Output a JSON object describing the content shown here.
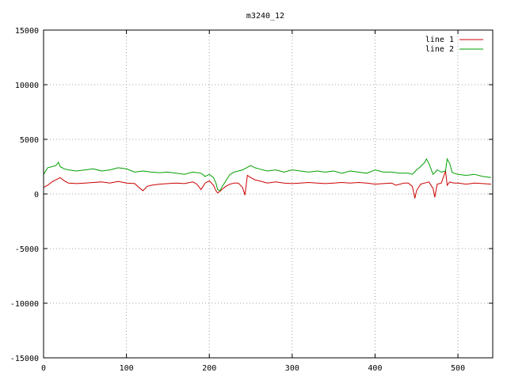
{
  "chart_data": {
    "type": "line",
    "title": "m3240_12",
    "xlim": [
      0,
      542
    ],
    "ylim": [
      -15000,
      15000
    ],
    "xticks": [
      0,
      100,
      200,
      300,
      400,
      500
    ],
    "yticks": [
      -15000,
      -10000,
      -5000,
      0,
      5000,
      10000,
      15000
    ],
    "grid": true,
    "legend_position": "top-right",
    "series": [
      {
        "name": "line 1",
        "color": "#cc0000",
        "x": [
          0,
          5,
          10,
          15,
          20,
          25,
          30,
          40,
          50,
          60,
          70,
          80,
          90,
          100,
          110,
          115,
          120,
          125,
          130,
          140,
          150,
          160,
          170,
          180,
          185,
          190,
          195,
          200,
          205,
          208,
          210,
          213,
          215,
          220,
          225,
          230,
          235,
          240,
          243,
          246,
          250,
          255,
          260,
          270,
          280,
          290,
          300,
          310,
          320,
          330,
          340,
          350,
          360,
          370,
          380,
          390,
          400,
          410,
          420,
          425,
          430,
          435,
          440,
          445,
          448,
          450,
          455,
          460,
          465,
          470,
          472,
          475,
          480,
          485,
          487,
          490,
          495,
          500,
          510,
          520,
          530,
          540
        ],
        "y": [
          600,
          800,
          1100,
          1300,
          1500,
          1200,
          1000,
          950,
          1000,
          1050,
          1100,
          1000,
          1150,
          1000,
          950,
          600,
          300,
          700,
          800,
          900,
          950,
          1000,
          950,
          1100,
          900,
          400,
          1000,
          1200,
          800,
          300,
          100,
          250,
          400,
          700,
          900,
          1000,
          1000,
          600,
          -100,
          1700,
          1500,
          1300,
          1200,
          1000,
          1100,
          1000,
          950,
          1000,
          1050,
          1000,
          950,
          1000,
          1050,
          1000,
          1050,
          1000,
          900,
          950,
          1000,
          800,
          900,
          1000,
          1000,
          700,
          -400,
          300,
          900,
          1000,
          1100,
          500,
          -300,
          900,
          1000,
          2100,
          800,
          1100,
          1000,
          1000,
          900,
          1000,
          950,
          900
        ]
      },
      {
        "name": "line 2",
        "color": "#00a000",
        "x": [
          0,
          5,
          10,
          15,
          18,
          20,
          25,
          30,
          40,
          50,
          60,
          70,
          80,
          90,
          100,
          110,
          120,
          130,
          140,
          150,
          160,
          170,
          180,
          190,
          195,
          200,
          205,
          208,
          210,
          213,
          215,
          220,
          225,
          230,
          235,
          240,
          245,
          250,
          255,
          260,
          270,
          280,
          290,
          300,
          310,
          320,
          330,
          340,
          350,
          360,
          370,
          380,
          390,
          400,
          410,
          420,
          430,
          440,
          445,
          450,
          455,
          460,
          462,
          465,
          470,
          475,
          480,
          485,
          487,
          490,
          493,
          495,
          500,
          510,
          520,
          530,
          540
        ],
        "y": [
          1800,
          2400,
          2500,
          2600,
          2900,
          2500,
          2300,
          2200,
          2100,
          2200,
          2300,
          2100,
          2200,
          2400,
          2300,
          2000,
          2100,
          2000,
          1950,
          2000,
          1900,
          1800,
          2000,
          1900,
          1600,
          1800,
          1500,
          1000,
          400,
          300,
          600,
          1200,
          1800,
          2000,
          2100,
          2200,
          2400,
          2600,
          2400,
          2300,
          2100,
          2200,
          2000,
          2200,
          2100,
          2000,
          2100,
          2000,
          2100,
          1900,
          2100,
          2000,
          1900,
          2200,
          2000,
          2000,
          1900,
          1900,
          1800,
          2200,
          2500,
          2900,
          3200,
          2800,
          1800,
          2200,
          2000,
          2100,
          3200,
          2800,
          2000,
          1900,
          1800,
          1700,
          1800,
          1600,
          1500
        ]
      }
    ]
  }
}
